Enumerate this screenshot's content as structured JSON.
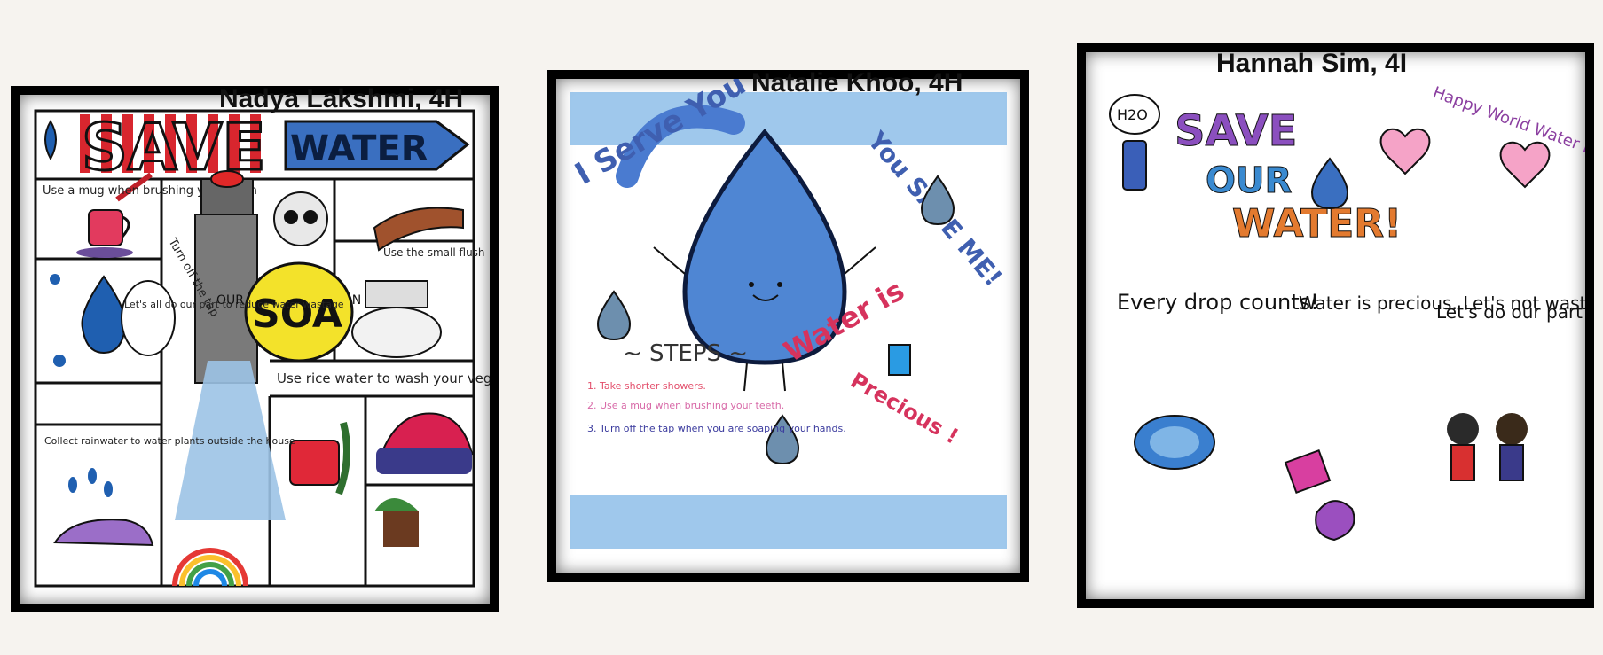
{
  "posters": [
    {
      "caption": "Nadya Lakshmi, 4H",
      "title_left": "SAVE",
      "title_right": "WATER",
      "texts": {
        "mug": "Use a mug when brushing your teeth",
        "turn": "Turn off the tap",
        "lives": "OUR LIVES DEPEND ON IT",
        "soap": "SOA",
        "flush": "Use the small flush",
        "part": "Let's all do our part to reduce water wastage",
        "rice": "Use rice water to wash your vegetables",
        "rain": "Collect rainwater to water plants outside the house"
      }
    },
    {
      "caption": "Natalie Khoo, 4H",
      "i_serve": "I Serve You",
      "you_save": "You SAVE ME!",
      "water_is": "Water is",
      "precious": "Precious !",
      "steps_title": "~ STEPS ~",
      "steps": [
        "1. Take shorter showers.",
        "2. Use a mug when brushing your teeth.",
        "3. Turn off the tap when you are soaping your hands."
      ]
    },
    {
      "caption": "Hannah Sim, 4I",
      "h2o": "H2O",
      "save": "SAVE",
      "our": "OUR",
      "water": "WATER!",
      "happy": "Happy World Water Day!",
      "every": "Every drop counts!",
      "precious": "Water is precious. Let's not waste water.",
      "part": "Let's do our part to save water!"
    }
  ]
}
